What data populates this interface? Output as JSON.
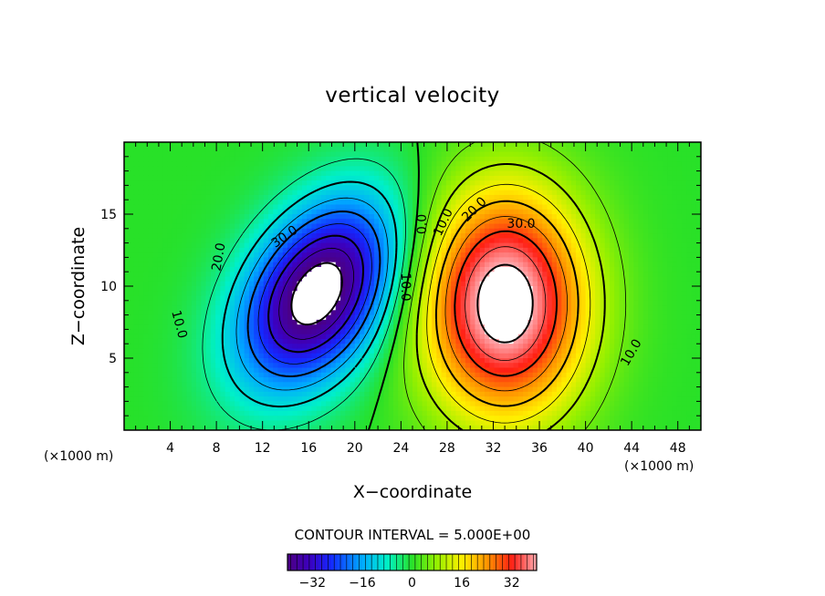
{
  "chart_data": {
    "type": "heatmap",
    "title": "vertical velocity",
    "xlabel": "X−coordinate",
    "ylabel": "Z−coordinate",
    "x_unit": "(×1000 m)",
    "xlim": [
      0,
      50
    ],
    "ylim": [
      0,
      20
    ],
    "x_ticks": [
      4,
      8,
      12,
      16,
      20,
      24,
      28,
      32,
      36,
      40,
      44,
      48
    ],
    "y_ticks": [
      5,
      10,
      15
    ],
    "contour_interval_label": "CONTOUR INTERVAL = 5.000E+00",
    "contour_interval": 5.0,
    "contour_labels": [
      "30.0",
      "20.0",
      "10.0",
      "0.0",
      "10.0",
      "10.0",
      "20.0",
      "30.0",
      "10.0"
    ],
    "negative_contours": "dashed",
    "positive_contours": "solid",
    "features": [
      {
        "kind": "minimum (downdraft)",
        "x": 16.8,
        "z": 9.5,
        "peak": -45
      },
      {
        "kind": "maximum (updraft)",
        "x": 33.0,
        "z": 8.8,
        "peak": 45
      },
      {
        "kind": "zero line",
        "x": 25.3
      }
    ],
    "colorbar": {
      "range": [
        -40,
        40
      ],
      "ticks": [
        -32,
        -16,
        0,
        16,
        32
      ],
      "tick_labels": [
        "−32",
        "−16",
        "0",
        "16",
        "32"
      ],
      "colormap": "rainbow (purple → blue → cyan → green → yellow → red → pink)"
    },
    "colors": {
      "low": "#4b0082",
      "mid": "#22e022",
      "high": "#ff2020",
      "extreme_white": "#ffffff"
    }
  }
}
